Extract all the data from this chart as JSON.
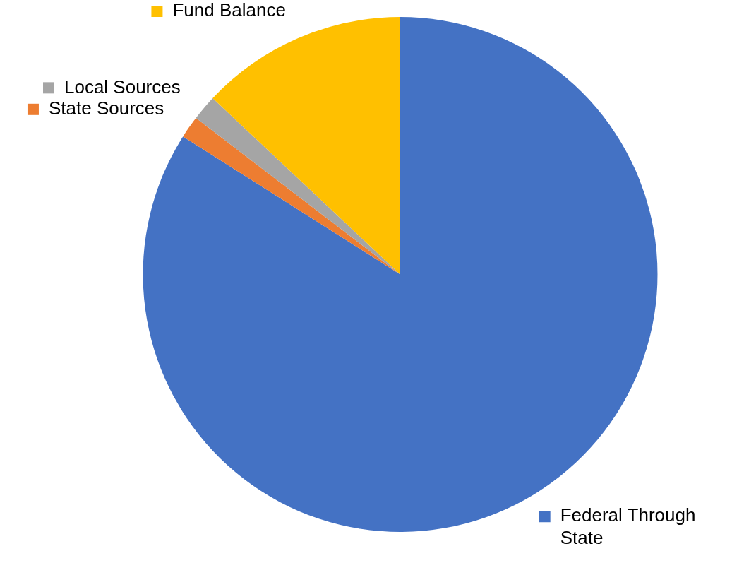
{
  "chart_data": {
    "type": "pie",
    "categories": [
      "Federal Through State",
      "State Sources",
      "Local Sources",
      "Fund Balance"
    ],
    "values": [
      84,
      1.4,
      1.6,
      13
    ],
    "colors": [
      "#4472c4",
      "#ed7d31",
      "#a5a5a5",
      "#ffc000"
    ],
    "legend": "top left"
  }
}
